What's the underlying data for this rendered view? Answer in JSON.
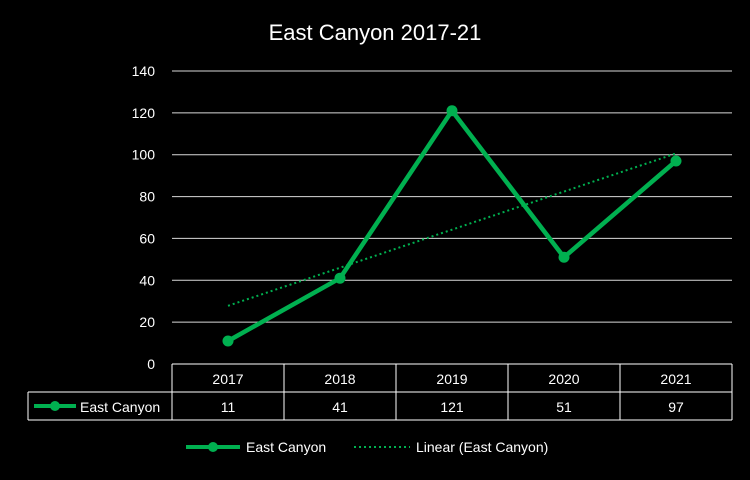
{
  "chart_data": {
    "type": "line",
    "title": "East Canyon 2017-21",
    "categories": [
      "2017",
      "2018",
      "2019",
      "2020",
      "2021"
    ],
    "series": [
      {
        "name": "East Canyon",
        "values": [
          11,
          41,
          121,
          51,
          97
        ],
        "color": "#00b050"
      }
    ],
    "trendline": {
      "name": "Linear (East Canyon)",
      "type": "linear",
      "color": "#00b050"
    },
    "ylim": [
      0,
      140
    ],
    "yticks": [
      0,
      20,
      40,
      60,
      80,
      100,
      120,
      140
    ],
    "grid": true,
    "data_table": true,
    "legend_position": "bottom",
    "background": "#000000"
  }
}
